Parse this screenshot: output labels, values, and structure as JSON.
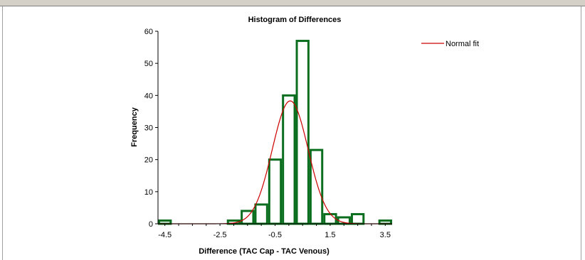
{
  "chart_data": {
    "type": "bar",
    "title": "Histogram of Differences",
    "xlabel": "Difference (TAC Cap - TAC Venous)",
    "ylabel": "Frequency",
    "ylim": [
      0,
      60
    ],
    "xlim": [
      -4.75,
      3.75
    ],
    "y_ticks": [
      "0",
      "10",
      "20",
      "30",
      "40",
      "50",
      "60"
    ],
    "x_ticks": [
      {
        "value": -4.5,
        "label": "-4.5"
      },
      {
        "value": -2.5,
        "label": "-2.5"
      },
      {
        "value": -0.5,
        "label": "-0.5"
      },
      {
        "value": 1.5,
        "label": "1.5"
      },
      {
        "value": 3.5,
        "label": "3.5"
      }
    ],
    "bin_width": 0.5,
    "bins": [
      {
        "center": -4.5,
        "value": 1
      },
      {
        "center": -4.0,
        "value": 0
      },
      {
        "center": -3.5,
        "value": 0
      },
      {
        "center": -3.0,
        "value": 0
      },
      {
        "center": -2.5,
        "value": 0
      },
      {
        "center": -2.0,
        "value": 1
      },
      {
        "center": -1.5,
        "value": 4
      },
      {
        "center": -1.0,
        "value": 6
      },
      {
        "center": -0.5,
        "value": 20
      },
      {
        "center": 0.0,
        "value": 40
      },
      {
        "center": 0.5,
        "value": 57
      },
      {
        "center": 1.0,
        "value": 23
      },
      {
        "center": 1.5,
        "value": 3
      },
      {
        "center": 2.0,
        "value": 2
      },
      {
        "center": 2.5,
        "value": 3
      },
      {
        "center": 3.0,
        "value": 0
      },
      {
        "center": 3.5,
        "value": 1
      }
    ],
    "normal_fit": {
      "name": "Normal fit",
      "peak": 38.3,
      "mean": 0.05,
      "sd": 0.65
    },
    "legend_position": "top-right",
    "colors": {
      "bar_stroke": "#0a6e1e",
      "fit_line": "#cc0000",
      "axis": "#000000"
    },
    "grid": false
  }
}
